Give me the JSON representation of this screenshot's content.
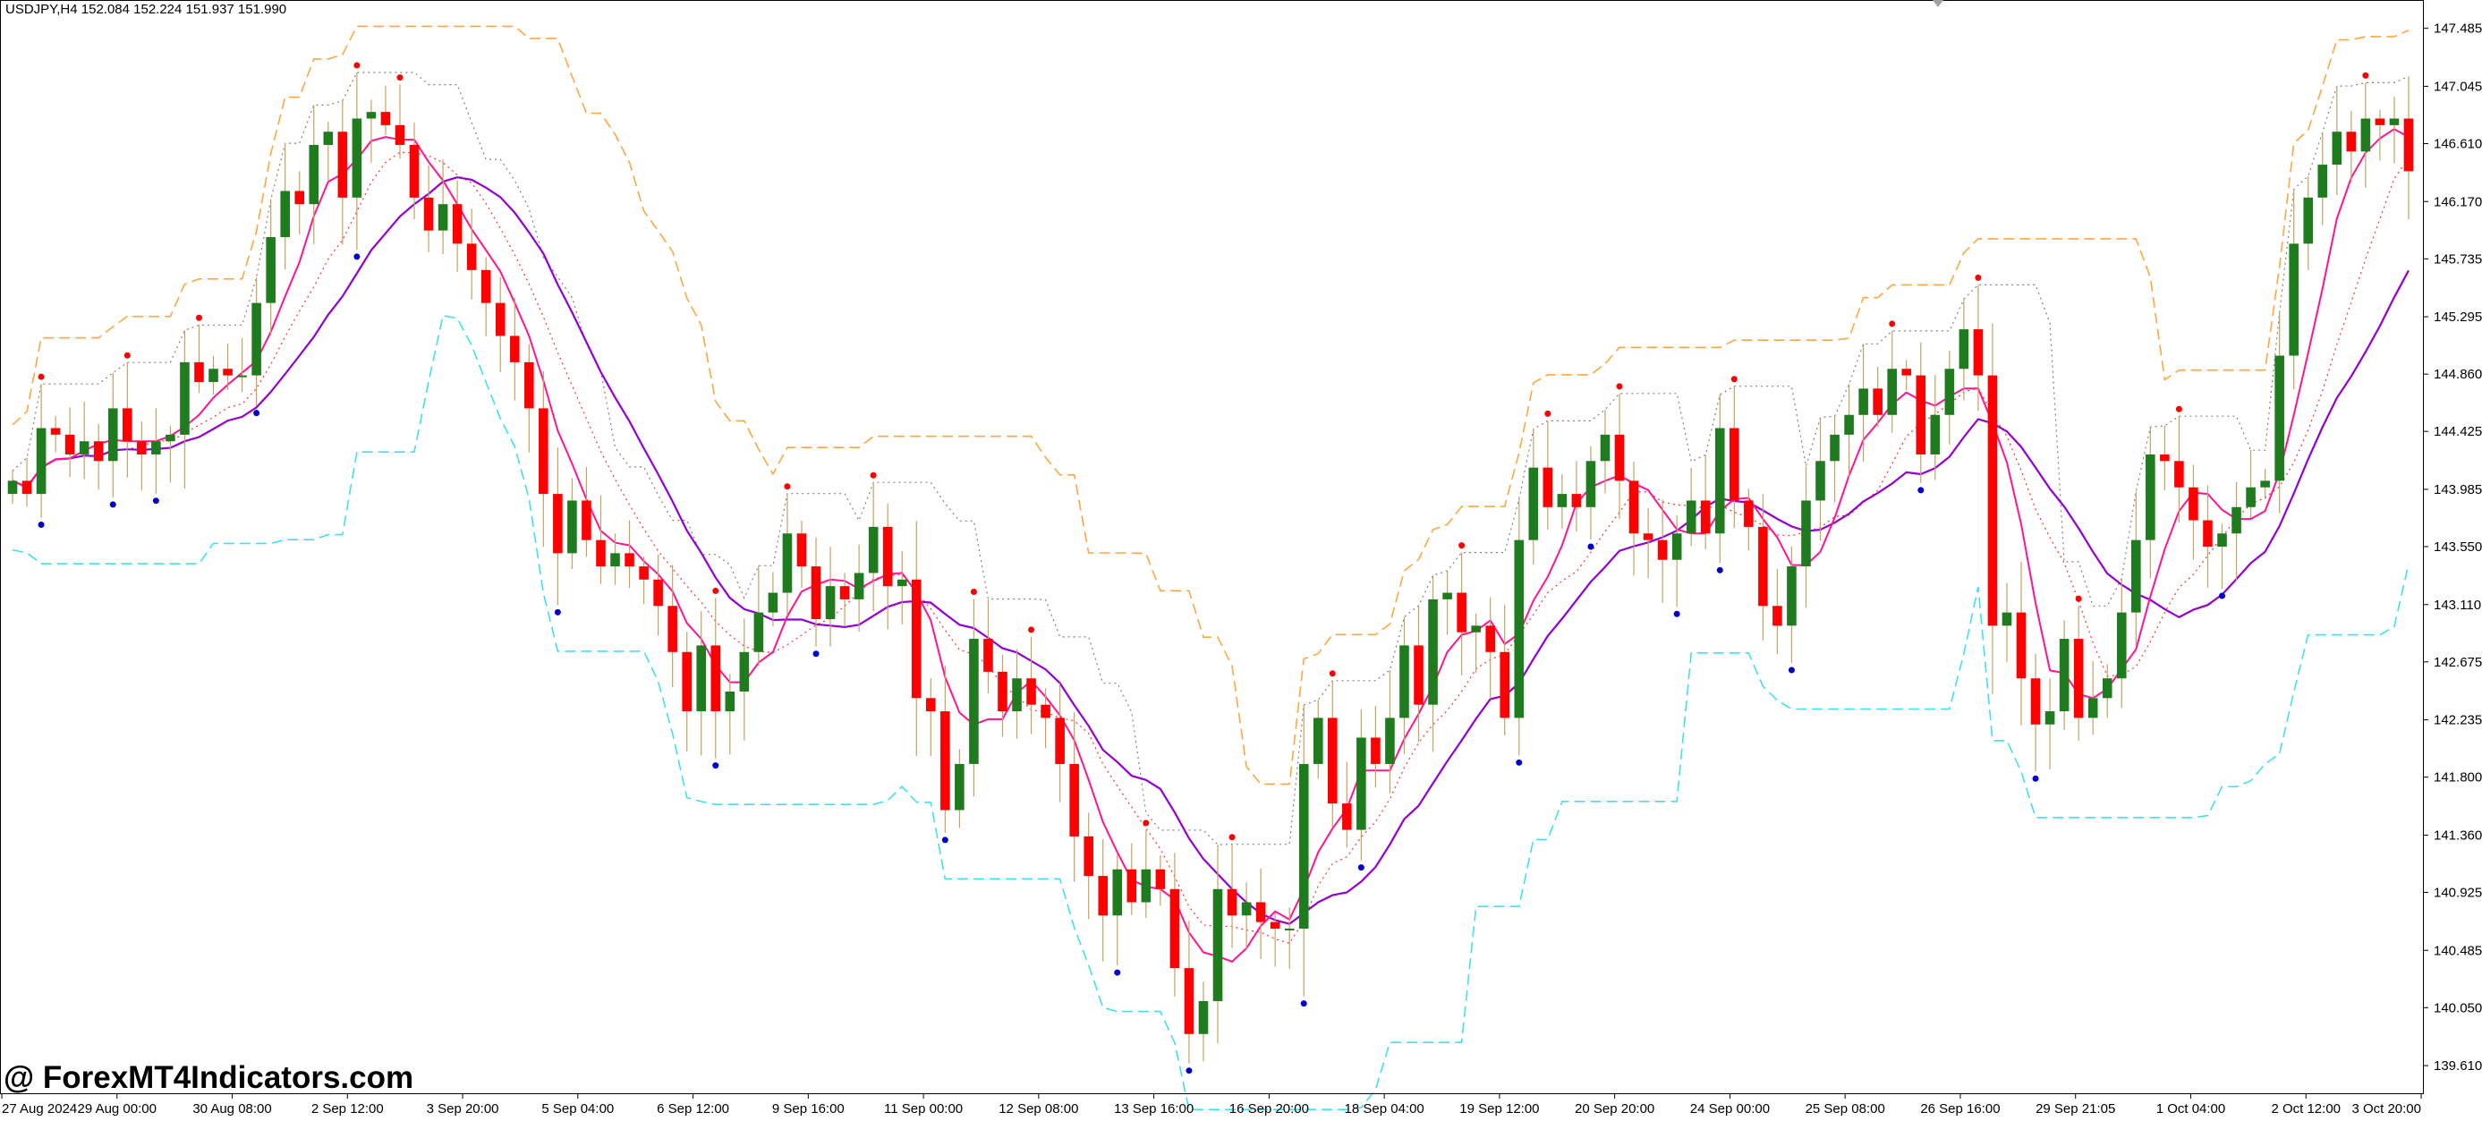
{
  "header": {
    "title": "USDJPY,H4  152.084 152.224 151.937 151.990"
  },
  "watermark": {
    "text": "@ ForexMT4Indicators.com"
  },
  "colors": {
    "bull": "#1e7b1e",
    "bear": "#ff0000",
    "wick": "#c8a060",
    "ma_slow": "#9400d3",
    "ma_fast": "#ff1493",
    "envelope_upper": "#ffa640",
    "envelope_lower": "#40e0f0",
    "dotted_gray": "#808080",
    "dotted_red": "#ff3030",
    "fractal_up": "#ff0000",
    "fractal_down": "#0000cd"
  },
  "chart_data": {
    "type": "candlestick",
    "symbol": "USDJPY",
    "timeframe": "H4",
    "ylim": [
      139.4,
      147.7
    ],
    "yticks": [
      "147.485",
      "147.045",
      "146.610",
      "146.170",
      "145.735",
      "145.295",
      "144.860",
      "144.425",
      "143.985",
      "143.550",
      "143.110",
      "142.675",
      "142.235",
      "141.800",
      "141.360",
      "140.925",
      "140.485",
      "140.050",
      "139.610"
    ],
    "xticks": [
      "27 Aug 2024",
      "29 Aug 00:00",
      "30 Aug 08:00",
      "2 Sep 12:00",
      "3 Sep 20:00",
      "5 Sep 04:00",
      "6 Sep 12:00",
      "9 Sep 16:00",
      "11 Sep 00:00",
      "12 Sep 08:00",
      "13 Sep 16:00",
      "16 Sep 20:00",
      "18 Sep 04:00",
      "19 Sep 12:00",
      "20 Sep 20:00",
      "24 Sep 00:00",
      "25 Sep 08:00",
      "26 Sep 16:00",
      "29 Sep 21:05",
      "1 Oct 04:00",
      "2 Oct 12:00",
      "3 Oct 20:00"
    ],
    "closes": [
      144.05,
      143.95,
      144.45,
      144.4,
      144.25,
      144.35,
      144.2,
      144.6,
      144.35,
      144.25,
      144.35,
      144.4,
      144.95,
      144.8,
      144.9,
      144.85,
      144.85,
      145.4,
      145.9,
      146.25,
      146.15,
      146.6,
      146.7,
      146.2,
      146.8,
      146.85,
      146.75,
      146.6,
      146.2,
      145.95,
      146.15,
      145.85,
      145.65,
      145.4,
      145.15,
      144.95,
      144.6,
      143.95,
      143.5,
      143.9,
      143.6,
      143.4,
      143.5,
      143.4,
      143.3,
      143.1,
      142.75,
      142.3,
      142.8,
      142.3,
      142.45,
      142.75,
      143.05,
      143.2,
      143.65,
      143.4,
      143.0,
      143.25,
      143.15,
      143.35,
      143.7,
      143.25,
      143.3,
      142.4,
      142.3,
      141.55,
      141.9,
      142.85,
      142.6,
      142.3,
      142.55,
      142.35,
      142.25,
      141.9,
      141.35,
      141.05,
      140.75,
      141.1,
      140.85,
      141.1,
      140.95,
      140.35,
      139.85,
      140.1,
      140.95,
      140.75,
      140.85,
      140.7,
      140.65,
      140.65,
      141.9,
      142.25,
      141.6,
      141.4,
      142.1,
      141.9,
      142.25,
      142.8,
      142.35,
      143.15,
      143.2,
      142.9,
      142.95,
      142.75,
      142.25,
      143.6,
      144.15,
      143.85,
      143.95,
      143.85,
      144.2,
      144.4,
      144.05,
      143.65,
      143.6,
      143.45,
      143.65,
      143.9,
      143.65,
      144.45,
      143.9,
      143.7,
      143.1,
      142.95,
      143.4,
      143.9,
      144.2,
      144.4,
      144.55,
      144.75,
      144.55,
      144.9,
      144.85,
      144.25,
      144.55,
      144.9,
      145.2,
      144.85,
      142.95,
      143.05,
      142.55,
      142.2,
      142.3,
      142.85,
      142.25,
      142.4,
      142.55,
      143.05,
      143.6,
      144.25,
      144.2,
      144.0,
      143.75,
      143.55,
      143.65,
      143.85,
      144.0,
      144.05,
      145.0,
      145.85,
      146.2,
      146.45,
      146.7,
      146.55,
      146.8,
      146.75,
      146.8,
      146.4
    ]
  }
}
